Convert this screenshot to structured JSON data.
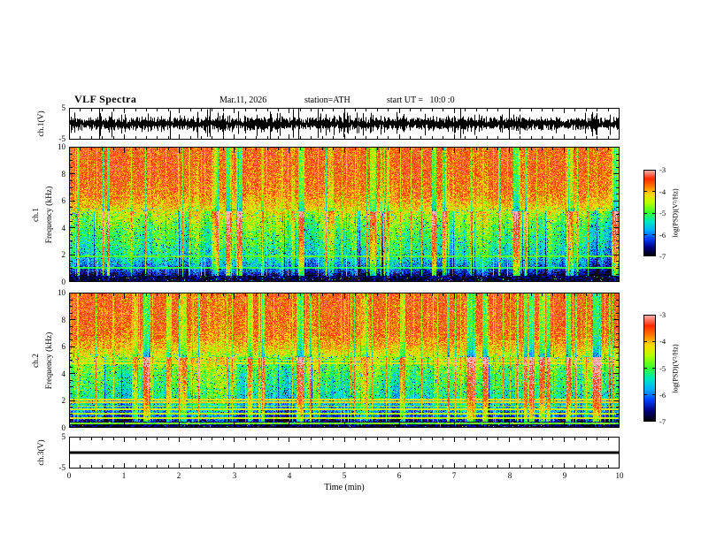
{
  "header": {
    "title": "VLF Spectra",
    "date": "Mar.11, 2026",
    "station": "station=ATH",
    "start_ut": "start UT =   10:0 :0"
  },
  "panels": {
    "wave1": {
      "ylabel": "ch.1(V)",
      "ytop": "5",
      "ybottom": "-5"
    },
    "spec1": {
      "channel": "ch.1",
      "ylabel": "Frequency (kHz)",
      "yticks": [
        "10",
        "8",
        "6",
        "4",
        "2",
        "0"
      ]
    },
    "spec2": {
      "channel": "ch.2",
      "ylabel": "Frequency (kHz)",
      "yticks": [
        "10",
        "8",
        "6",
        "4",
        "2",
        "0"
      ]
    },
    "wave3": {
      "ylabel": "ch.3(V)",
      "ytop": "5",
      "ybottom": "-5"
    }
  },
  "xaxis": {
    "label": "Time (min)",
    "ticks": [
      "0",
      "1",
      "2",
      "3",
      "4",
      "5",
      "6",
      "7",
      "8",
      "9",
      "10"
    ]
  },
  "colorbar": {
    "label": "log(PSD)(V²/Hz)",
    "ticks": [
      "-3",
      "-4",
      "-5",
      "-6",
      "-7"
    ]
  },
  "colors": {
    "background": "#ffffff",
    "frame": "#000000",
    "trace": "#000000",
    "colormap": [
      [
        0.0,
        "#000000"
      ],
      [
        0.1,
        "#000080"
      ],
      [
        0.2,
        "#0040ff"
      ],
      [
        0.3,
        "#00b0ff"
      ],
      [
        0.4,
        "#00e8c0"
      ],
      [
        0.5,
        "#30ff30"
      ],
      [
        0.62,
        "#b8ff00"
      ],
      [
        0.72,
        "#ffd800"
      ],
      [
        0.82,
        "#ff7000"
      ],
      [
        0.9,
        "#ff2800"
      ],
      [
        1.0,
        "#ffb4b4"
      ]
    ]
  },
  "chart_data": [
    {
      "type": "line",
      "name": "ch.1 voltage waveform",
      "ylabel": "ch.1(V)",
      "xlabel": "Time (min)",
      "xlim": [
        0,
        10
      ],
      "ylim": [
        -5,
        5
      ],
      "noise_rms_v": 1.0,
      "spike_peak_v": 4,
      "summary": "continuous broadband atmospheric noise centered on 0 V with dense impulsive spikes reaching about ±4 V over the whole 10-minute record"
    },
    {
      "type": "heatmap",
      "name": "ch.1 VLF spectrogram",
      "xlabel": "Time (min)",
      "ylabel": "Frequency (kHz)",
      "zlabel": "log(PSD)(V²/Hz)",
      "xlim": [
        0,
        10
      ],
      "ylim": [
        0,
        10
      ],
      "zlim": [
        -7,
        -3
      ],
      "profile_points": [
        [
          0,
          -6.9
        ],
        [
          0.4,
          -6.8
        ],
        [
          0.8,
          -6.2
        ],
        [
          1.5,
          -5.6
        ],
        [
          2,
          -5.35
        ],
        [
          3,
          -5.05
        ],
        [
          4,
          -4.85
        ],
        [
          5,
          -4.45
        ],
        [
          5.6,
          -4.0
        ],
        [
          6.5,
          -3.7
        ],
        [
          8,
          -3.55
        ],
        [
          10,
          -3.5
        ]
      ],
      "interference_lines": [
        [
          1.05,
          -5.1
        ],
        [
          1.9,
          -4.9
        ]
      ],
      "features": "red band (log PSD ≈ -3.5) above ~5.5 kHz, green/cyan (≈ -5) from 1.5–5 kHz with blue speckle dips to ≈ -6.5, dark blue/black band (≈ -6.9) below ~0.5 kHz, dense vertical sferic streaks spanning all frequencies"
    },
    {
      "type": "heatmap",
      "name": "ch.2 VLF spectrogram",
      "xlabel": "Time (min)",
      "ylabel": "Frequency (kHz)",
      "zlabel": "log(PSD)(V²/Hz)",
      "xlim": [
        0,
        10
      ],
      "ylim": [
        0,
        10
      ],
      "zlim": [
        -7,
        -3
      ],
      "profile_points": [
        [
          0,
          -6.9
        ],
        [
          0.4,
          -6.7
        ],
        [
          0.8,
          -6.1
        ],
        [
          1.5,
          -5.55
        ],
        [
          2,
          -5.3
        ],
        [
          3,
          -5.0
        ],
        [
          4,
          -4.85
        ],
        [
          5,
          -4.5
        ],
        [
          6,
          -3.9
        ],
        [
          7,
          -3.6
        ],
        [
          10,
          -3.5
        ]
      ],
      "interference_lines": [
        [
          0.35,
          -4.8
        ],
        [
          0.7,
          -4.4
        ],
        [
          1.05,
          -4.5
        ],
        [
          1.35,
          -4.4
        ],
        [
          1.6,
          -4.6
        ],
        [
          1.9,
          -4.15
        ],
        [
          2.1,
          -4.25
        ],
        [
          4.75,
          -4.35
        ],
        [
          5.0,
          -4.25
        ]
      ],
      "features": "same banded structure as ch.1 plus persistent horizontal narrowband interference lines near 0.7, 1.0, 1.35, 1.9, 2.1, 4.75 and 5.0 kHz (log PSD ≈ -4.2), vertical sferic streaks throughout"
    },
    {
      "type": "line",
      "name": "ch.3 voltage waveform",
      "ylabel": "ch.3(V)",
      "xlabel": "Time (min)",
      "xlim": [
        0,
        10
      ],
      "ylim": [
        -5,
        5
      ],
      "value_v": 0,
      "summary": "perfectly flat trace at 0 V for the entire record (channel inactive)"
    }
  ]
}
